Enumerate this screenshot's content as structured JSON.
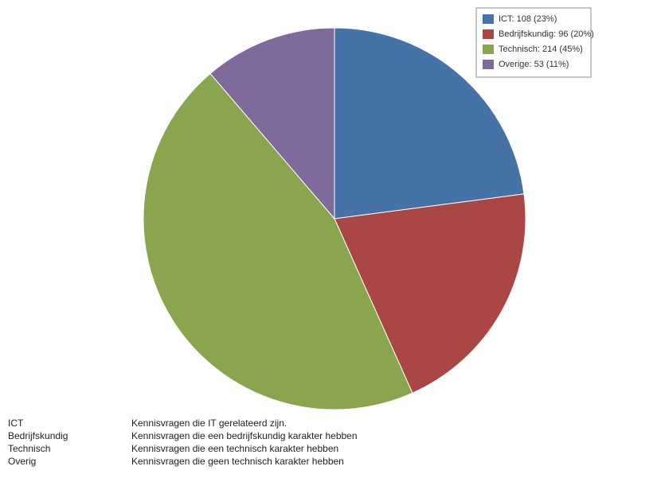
{
  "chart_data": {
    "type": "pie",
    "categories": [
      "ICT",
      "Bedrijfskundig",
      "Technisch",
      "Overige"
    ],
    "values": [
      108,
      96,
      214,
      53
    ],
    "legend": [
      "ICT: 108 (23%)",
      "Bedrijfskundig: 96 (20%)",
      "Technisch: 214 (45%)",
      "Overige: 53 (11%)"
    ],
    "colors": [
      "#4572a7",
      "#aa4643",
      "#89a54e",
      "#80699b"
    ],
    "legend_position": "upper right"
  },
  "definitions": {
    "rows": [
      [
        "ICT",
        "Kennisvragen die IT gerelateerd zijn."
      ],
      [
        "Bedrijfskundig",
        "Kennisvragen die een bedrijfskundig karakter hebben"
      ],
      [
        "Technisch",
        "Kennisvragen die een technisch karakter hebben"
      ],
      [
        "Overig",
        "Kennisvragen die geen technisch karakter hebben"
      ]
    ]
  }
}
